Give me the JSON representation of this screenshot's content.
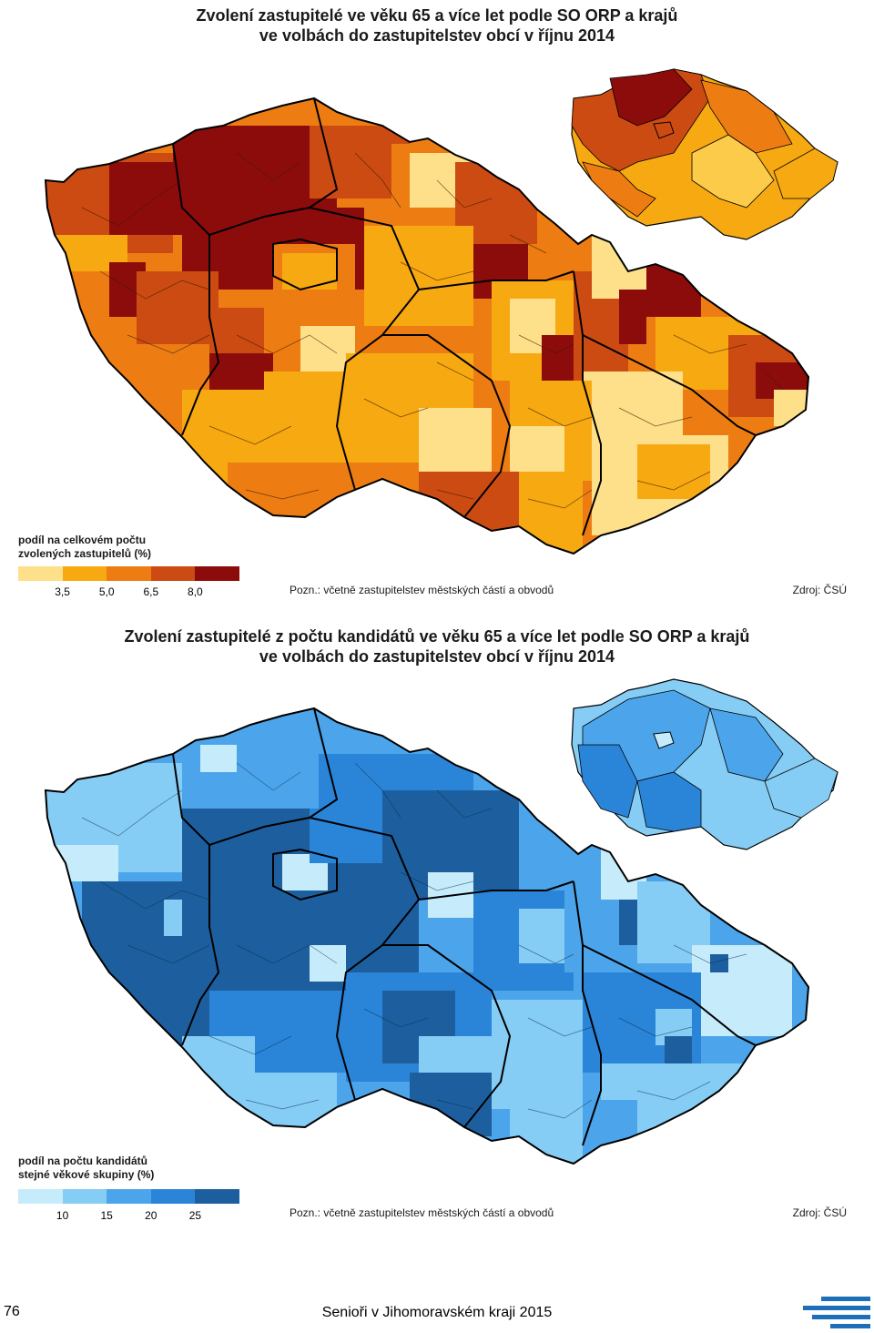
{
  "panel_1": {
    "title_line1": "Zvolení zastupitelé ve věku 65 a více let podle SO ORP a krajů",
    "title_line2": "ve volbách do zastupitelstev obcí v říjnu 2014",
    "legend_title_line1": "podíl na celkovém počtu",
    "legend_title_line2": "zvolených zastupitelů (%)",
    "legend_colors": [
      "#fee08a",
      "#f7a912",
      "#ed7d13",
      "#cc4b12",
      "#8c0c0c"
    ],
    "legend_ticks": [
      "3,5",
      "5,0",
      "6,5",
      "8,0"
    ],
    "note": "Pozn.:  včetně zastupitelstev městských částí a obvodů",
    "source": "Zdroj: ČSÚ"
  },
  "panel_2": {
    "title_line1": "Zvolení zastupitelé z počtu kandidátů ve věku 65 a více let podle SO ORP a krajů",
    "title_line2": "ve volbách do zastupitelstev obcí v říjnu 2014",
    "legend_title_line1": "podíl na počtu kandidátů",
    "legend_title_line2": "stejné věkové skupiny (%)",
    "legend_colors": [
      "#c6ecfb",
      "#86cdf5",
      "#4ca5ea",
      "#2a85d8",
      "#1d5f9e"
    ],
    "legend_ticks": [
      "10",
      "15",
      "20",
      "25"
    ],
    "note": "Pozn.:  včetně zastupitelstev městských částí a obvodů",
    "source": "Zdroj: ČSÚ"
  },
  "footer": {
    "page_number": "76",
    "text": "Senioři v Jihomoravském kraji 2015"
  },
  "icons": {
    "footer_logo": "czso-stripes-logo"
  }
}
